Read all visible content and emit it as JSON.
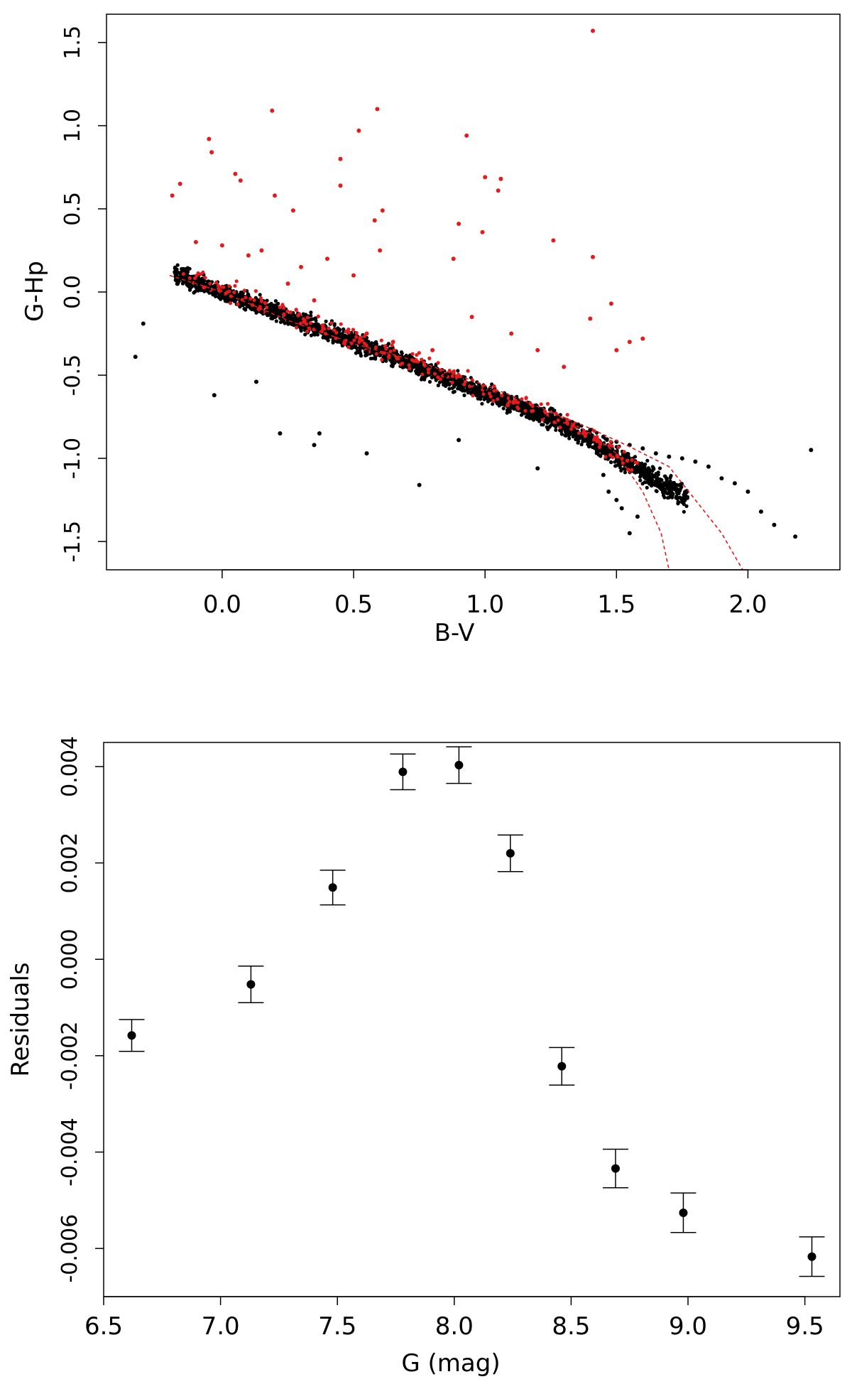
{
  "chart_data": [
    {
      "type": "scatter",
      "title": "",
      "xlabel": "B-V",
      "ylabel": "G-Hp",
      "xlim": [
        -0.44,
        2.35
      ],
      "ylim": [
        -1.67,
        1.67
      ],
      "xticks": [
        "0.0",
        "0.5",
        "1.0",
        "1.5",
        "2.0"
      ],
      "yticks": [
        "-1.5",
        "-1.0",
        "-0.5",
        "0.0",
        "0.5",
        "1.0",
        "1.5"
      ],
      "grid": false,
      "colors": {
        "black_points": "#000000",
        "red_points": "#e41a1c",
        "fit_curves": "#e41a1c"
      },
      "series": [
        {
          "style": "black points (main sequence band, approximate)",
          "x": [
            -0.3,
            -0.33,
            -0.18,
            -0.15,
            -0.1,
            -0.05,
            0.0,
            0.05,
            0.1,
            0.15,
            0.2,
            0.25,
            0.3,
            0.35,
            0.4,
            0.45,
            0.5,
            0.55,
            0.6,
            0.65,
            0.7,
            0.75,
            0.8,
            0.85,
            0.9,
            0.95,
            1.0,
            1.05,
            1.1,
            1.15,
            1.2,
            1.25,
            1.3,
            1.35,
            1.4,
            1.45,
            1.5,
            1.55,
            1.6,
            1.65,
            1.7,
            1.75,
            1.8,
            1.85,
            1.9,
            1.95,
            2.0,
            2.05,
            2.1,
            2.18,
            2.24,
            1.52,
            1.55,
            1.58,
            1.5,
            1.47,
            1.45,
            0.22,
            0.35,
            0.55,
            0.75,
            0.9,
            1.2,
            0.37,
            0.13,
            -0.03
          ],
          "y": [
            -0.19,
            -0.39,
            0.12,
            0.08,
            0.05,
            0.02,
            -0.01,
            -0.05,
            -0.08,
            -0.12,
            -0.15,
            -0.18,
            -0.22,
            -0.25,
            -0.28,
            -0.3,
            -0.33,
            -0.36,
            -0.38,
            -0.4,
            -0.42,
            -0.44,
            -0.47,
            -0.5,
            -0.53,
            -0.55,
            -0.58,
            -0.61,
            -0.64,
            -0.67,
            -0.71,
            -0.74,
            -0.77,
            -0.8,
            -0.83,
            -0.87,
            -0.9,
            -0.92,
            -0.94,
            -0.97,
            -0.99,
            -1.0,
            -1.02,
            -1.05,
            -1.12,
            -1.15,
            -1.2,
            -1.32,
            -1.4,
            -1.47,
            -0.95,
            -1.3,
            -1.45,
            -1.35,
            -1.25,
            -1.2,
            -1.1,
            -0.85,
            -0.92,
            -0.97,
            -1.16,
            -0.89,
            -1.06,
            -0.85,
            -0.54,
            -0.62
          ]
        },
        {
          "style": "red points (outliers above the band, approximate)",
          "x": [
            1.41,
            0.19,
            0.59,
            0.52,
            -0.05,
            -0.04,
            0.93,
            0.45,
            0.05,
            0.07,
            1.0,
            1.06,
            1.05,
            0.45,
            -0.19,
            -0.16,
            0.2,
            0.27,
            0.61,
            0.58,
            0.6,
            0.9,
            1.26,
            1.41,
            0.99,
            0.88,
            1.4,
            1.48,
            1.6,
            1.55,
            1.5,
            0.4,
            0.5,
            0.3,
            0.15,
            -0.1,
            0.0,
            0.1,
            0.25,
            0.35,
            0.55,
            0.65,
            0.8,
            0.95,
            1.1,
            1.2,
            1.3
          ],
          "y": [
            1.57,
            1.09,
            1.1,
            0.97,
            0.92,
            0.84,
            0.94,
            0.8,
            0.71,
            0.67,
            0.69,
            0.68,
            0.61,
            0.64,
            0.58,
            0.65,
            0.58,
            0.49,
            0.49,
            0.43,
            0.25,
            0.41,
            0.31,
            0.21,
            0.36,
            0.2,
            -0.16,
            -0.07,
            -0.28,
            -0.3,
            -0.35,
            0.2,
            0.1,
            0.15,
            0.25,
            0.3,
            0.28,
            0.22,
            0.05,
            -0.05,
            -0.25,
            -0.3,
            -0.35,
            -0.15,
            -0.25,
            -0.35,
            -0.45
          ]
        },
        {
          "style": "red dashed fit curve (main branch)",
          "x": [
            -0.2,
            0.0,
            0.25,
            0.5,
            0.75,
            1.0,
            1.25,
            1.4,
            1.5,
            1.6,
            1.67,
            1.7
          ],
          "y": [
            0.1,
            0.0,
            -0.17,
            -0.31,
            -0.42,
            -0.56,
            -0.72,
            -0.85,
            -0.97,
            -1.2,
            -1.45,
            -1.67
          ]
        },
        {
          "style": "red dashed fit curve (giant branch)",
          "x": [
            1.25,
            1.4,
            1.55,
            1.7,
            1.8,
            1.9,
            1.98
          ],
          "y": [
            -0.72,
            -0.82,
            -0.93,
            -1.05,
            -1.25,
            -1.45,
            -1.67
          ]
        }
      ]
    },
    {
      "type": "scatter",
      "title": "",
      "xlabel": "G (mag)",
      "ylabel": "Residuals",
      "xlim": [
        6.5,
        9.65
      ],
      "ylim": [
        -0.007,
        0.0045
      ],
      "xticks": [
        "6.5",
        "7.0",
        "7.5",
        "8.0",
        "8.5",
        "9.0",
        "9.5"
      ],
      "yticks": [
        "-0.006",
        "-0.004",
        "-0.002",
        "0.000",
        "0.002",
        "0.004"
      ],
      "grid": false,
      "series": [
        {
          "style": "black points with error bars",
          "x": [
            6.62,
            7.13,
            7.48,
            7.78,
            8.02,
            8.24,
            8.46,
            8.69,
            8.98,
            9.53
          ],
          "y": [
            -0.00158,
            -0.00052,
            0.00149,
            0.00389,
            0.00403,
            0.0022,
            -0.00222,
            -0.00434,
            -0.00526,
            -0.00617
          ],
          "err": [
            0.00033,
            0.00038,
            0.00036,
            0.00037,
            0.00038,
            0.00038,
            0.00039,
            0.0004,
            0.00041,
            0.00041
          ]
        }
      ]
    }
  ]
}
